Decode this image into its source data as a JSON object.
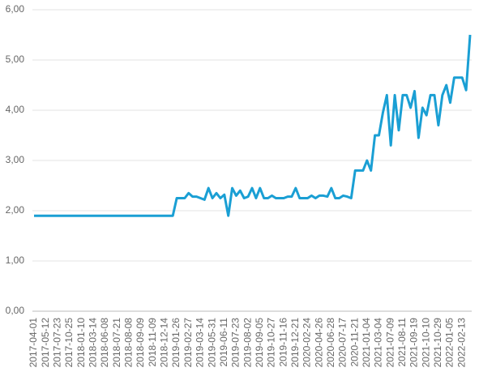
{
  "chart_data": {
    "type": "line",
    "categories": [
      "2017-04-01",
      null,
      null,
      "2017-05-12",
      null,
      null,
      "2017-07-23",
      null,
      null,
      "2017-10-25",
      null,
      null,
      "2018-01-10",
      null,
      null,
      "2018-03-14",
      null,
      null,
      "2018-06-08",
      null,
      null,
      "2018-07-21",
      null,
      null,
      "2018-08-08",
      null,
      null,
      "2018-09-09",
      null,
      null,
      "2018-11-09",
      null,
      null,
      "2018-12-14",
      null,
      null,
      "2019-01-26",
      null,
      null,
      "2019-02-27",
      null,
      null,
      "2019-03-14",
      null,
      null,
      "2019-05-31",
      null,
      null,
      "2019-06-11",
      null,
      null,
      "2019-07-23",
      null,
      null,
      "2019-08-02",
      null,
      null,
      "2019-09-05",
      null,
      null,
      "2019-10-27",
      null,
      null,
      "2019-11-16",
      null,
      null,
      "2019-12-21",
      null,
      null,
      "2020-02-24",
      null,
      null,
      "2020-04-26",
      null,
      null,
      "2020-06-28",
      null,
      null,
      "2020-07-17",
      null,
      null,
      "2020-11-21",
      null,
      null,
      "2021-01-04",
      null,
      null,
      "2021-03-04",
      null,
      null,
      "2021-07-09",
      null,
      null,
      "2021-08-11",
      null,
      null,
      "2021-09-19",
      null,
      null,
      "2021-10-10",
      null,
      null,
      "2021-10-29",
      null,
      null,
      "2022-01-05",
      null,
      null,
      "2022-02-13",
      null,
      null
    ],
    "series": [
      {
        "color": "#1a9fd4",
        "values": [
          1.9,
          1.9,
          1.9,
          1.9,
          1.9,
          1.9,
          1.9,
          1.9,
          1.9,
          1.9,
          1.9,
          1.9,
          1.9,
          1.9,
          1.9,
          1.9,
          1.9,
          1.9,
          1.9,
          1.9,
          1.9,
          1.9,
          1.9,
          1.9,
          1.9,
          1.9,
          1.9,
          1.9,
          1.9,
          1.9,
          1.9,
          1.9,
          1.9,
          1.9,
          1.9,
          1.9,
          2.25,
          2.25,
          2.25,
          2.35,
          2.28,
          2.28,
          2.25,
          2.22,
          2.45,
          2.25,
          2.35,
          2.25,
          2.32,
          1.9,
          2.45,
          2.3,
          2.4,
          2.25,
          2.28,
          2.45,
          2.25,
          2.45,
          2.25,
          2.25,
          2.3,
          2.25,
          2.25,
          2.25,
          2.28,
          2.28,
          2.45,
          2.25,
          2.25,
          2.25,
          2.3,
          2.25,
          2.3,
          2.3,
          2.28,
          2.45,
          2.25,
          2.25,
          2.3,
          2.28,
          2.25,
          2.8,
          2.8,
          2.8,
          3.0,
          2.8,
          3.5,
          3.5,
          3.95,
          4.3,
          3.3,
          4.3,
          3.6,
          4.3,
          4.3,
          4.05,
          4.38,
          3.45,
          4.05,
          3.9,
          4.3,
          4.3,
          3.7,
          4.3,
          4.5,
          4.15,
          4.65,
          4.65,
          4.65,
          4.4,
          5.5
        ]
      }
    ],
    "ylim": [
      0,
      6
    ],
    "yticks": [
      {
        "value": 0,
        "label": "0,00"
      },
      {
        "value": 1,
        "label": "1,00"
      },
      {
        "value": 2,
        "label": "2,00"
      },
      {
        "value": 3,
        "label": "3,00"
      },
      {
        "value": 4,
        "label": "4,00"
      },
      {
        "value": 5,
        "label": "5,00"
      },
      {
        "value": 6,
        "label": "6,00"
      }
    ],
    "grid": true
  }
}
